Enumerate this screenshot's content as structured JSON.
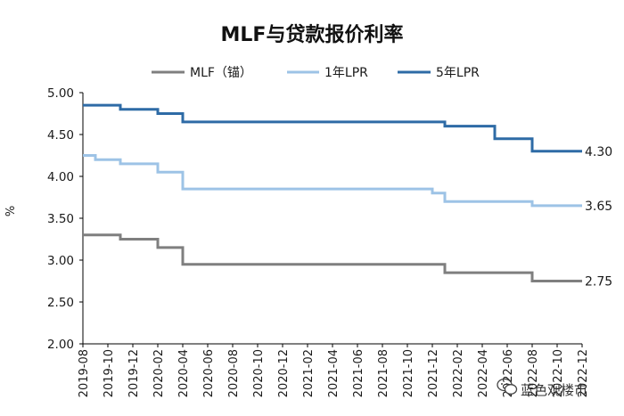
{
  "chart_data": {
    "type": "line",
    "title": "MLF与贷款报价利率",
    "ylabel": "%",
    "xlabel": "",
    "ylim": [
      2.0,
      5.0
    ],
    "yticks": [
      "5.00",
      "4.50",
      "4.00",
      "3.50",
      "3.00",
      "2.50",
      "2.00"
    ],
    "xticks": [
      "2019-08",
      "2019-10",
      "2019-12",
      "2020-02",
      "2020-04",
      "2020-06",
      "2020-08",
      "2020-10",
      "2020-12",
      "2021-02",
      "2021-04",
      "2021-06",
      "2021-08",
      "2021-10",
      "2021-12",
      "2022-02",
      "2022-04",
      "2022-06",
      "2022-08",
      "2022-10",
      "2022-12"
    ],
    "x_start": "2019-08",
    "x_end": "2022-12",
    "step": true,
    "grid": false,
    "legend_position": "top",
    "series": [
      {
        "name": "MLF（锚）",
        "color": "#7f7f7f",
        "points": [
          {
            "x": "2019-08",
            "y": 3.3
          },
          {
            "x": "2019-11",
            "y": 3.25
          },
          {
            "x": "2020-02",
            "y": 3.15
          },
          {
            "x": "2020-04",
            "y": 2.95
          },
          {
            "x": "2022-01",
            "y": 2.85
          },
          {
            "x": "2022-08",
            "y": 2.75
          },
          {
            "x": "2022-12",
            "y": 2.75
          }
        ],
        "end_label": "2.75"
      },
      {
        "name": "1年LPR",
        "color": "#9dc3e6",
        "points": [
          {
            "x": "2019-08",
            "y": 4.25
          },
          {
            "x": "2019-09",
            "y": 4.2
          },
          {
            "x": "2019-11",
            "y": 4.15
          },
          {
            "x": "2020-02",
            "y": 4.05
          },
          {
            "x": "2020-04",
            "y": 3.85
          },
          {
            "x": "2021-12",
            "y": 3.8
          },
          {
            "x": "2022-01",
            "y": 3.7
          },
          {
            "x": "2022-08",
            "y": 3.65
          },
          {
            "x": "2022-12",
            "y": 3.65
          }
        ],
        "end_label": "3.65"
      },
      {
        "name": "5年LPR",
        "color": "#2e6ba6",
        "points": [
          {
            "x": "2019-08",
            "y": 4.85
          },
          {
            "x": "2019-11",
            "y": 4.8
          },
          {
            "x": "2020-02",
            "y": 4.75
          },
          {
            "x": "2020-04",
            "y": 4.65
          },
          {
            "x": "2022-01",
            "y": 4.6
          },
          {
            "x": "2022-05",
            "y": 4.45
          },
          {
            "x": "2022-08",
            "y": 4.3
          },
          {
            "x": "2022-12",
            "y": 4.3
          }
        ],
        "end_label": "4.30"
      }
    ]
  },
  "watermark": {
    "text": "蓝色观楼市",
    "icon": "wechat-icon"
  }
}
